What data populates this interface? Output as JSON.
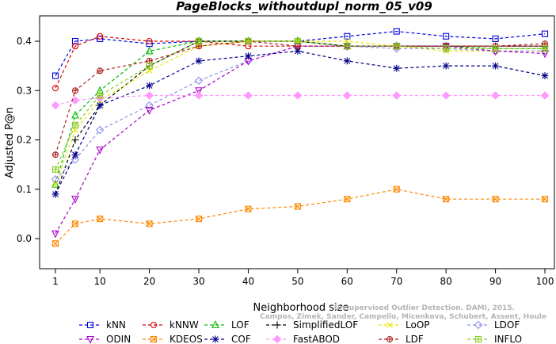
{
  "chart_data": {
    "type": "line",
    "title": "PageBlocks_withoutdupl_norm_05_v09",
    "xlabel": "Neighborhood size",
    "ylabel": "Adjusted P@n",
    "xlim": [
      1,
      100
    ],
    "ylim": [
      -0.05,
      0.44
    ],
    "xticks": [
      1,
      10,
      20,
      30,
      40,
      50,
      60,
      70,
      80,
      90,
      100
    ],
    "yticks": [
      0.0,
      0.1,
      0.2,
      0.3,
      0.4
    ],
    "ytick_labels": [
      "0.0",
      "0.1",
      "0.2",
      "0.3",
      "0.4"
    ],
    "grid": false,
    "legend": "bottom",
    "x": [
      1,
      5,
      10,
      20,
      30,
      40,
      50,
      60,
      70,
      80,
      90,
      100
    ],
    "series": [
      {
        "name": "kNN",
        "color": "#0000dd",
        "marker": "square",
        "values": [
          0.33,
          0.4,
          0.405,
          0.395,
          0.4,
          0.4,
          0.4,
          0.41,
          0.42,
          0.41,
          0.405,
          0.415
        ]
      },
      {
        "name": "kNNW",
        "color": "#dd0000",
        "marker": "circle",
        "values": [
          0.305,
          0.39,
          0.41,
          0.4,
          0.4,
          0.39,
          0.39,
          0.39,
          0.39,
          0.39,
          0.39,
          0.39
        ]
      },
      {
        "name": "LOF",
        "color": "#00bb00",
        "marker": "triangle-up",
        "values": [
          0.11,
          0.25,
          0.3,
          0.38,
          0.4,
          0.4,
          0.4,
          0.39,
          0.39,
          0.39,
          0.385,
          0.385
        ]
      },
      {
        "name": "SimplifiedLOF",
        "color": "#000000",
        "marker": "plus",
        "values": [
          0.09,
          0.2,
          0.27,
          0.35,
          0.4,
          0.4,
          0.4,
          0.39,
          0.39,
          0.39,
          0.39,
          0.39
        ]
      },
      {
        "name": "LoOP",
        "color": "#e6e600",
        "marker": "x",
        "values": [
          0.11,
          0.22,
          0.28,
          0.34,
          0.39,
          0.4,
          0.4,
          0.4,
          0.39,
          0.38,
          0.38,
          0.38
        ]
      },
      {
        "name": "LDOF",
        "color": "#9090ee",
        "marker": "diamond",
        "values": [
          0.12,
          0.16,
          0.22,
          0.27,
          0.32,
          0.36,
          0.39,
          0.39,
          0.385,
          0.385,
          0.38,
          0.38
        ]
      },
      {
        "name": "ODIN",
        "color": "#aa00cc",
        "marker": "triangle-down",
        "values": [
          0.01,
          0.08,
          0.18,
          0.26,
          0.3,
          0.36,
          0.39,
          0.39,
          0.39,
          0.39,
          0.38,
          0.375
        ]
      },
      {
        "name": "KDEOS",
        "color": "#ff8800",
        "marker": "square-x",
        "values": [
          -0.01,
          0.03,
          0.04,
          0.03,
          0.04,
          0.06,
          0.065,
          0.08,
          0.1,
          0.08,
          0.08,
          0.08
        ]
      },
      {
        "name": "COF",
        "color": "#000088",
        "marker": "asterisk",
        "values": [
          0.09,
          0.17,
          0.27,
          0.31,
          0.36,
          0.37,
          0.38,
          0.36,
          0.345,
          0.35,
          0.35,
          0.33
        ]
      },
      {
        "name": "FastABOD",
        "color": "#ff99ff",
        "marker": "diamond-filled",
        "values": [
          0.27,
          0.28,
          0.285,
          0.29,
          0.29,
          0.29,
          0.29,
          0.29,
          0.29,
          0.29,
          0.29,
          0.29
        ]
      },
      {
        "name": "LDF",
        "color": "#aa2222",
        "marker": "circle-plus",
        "values": [
          0.17,
          0.3,
          0.34,
          0.36,
          0.39,
          0.4,
          0.39,
          0.39,
          0.39,
          0.39,
          0.39,
          0.395
        ]
      },
      {
        "name": "INFLO",
        "color": "#88cc22",
        "marker": "square-plus",
        "values": [
          0.14,
          0.23,
          0.29,
          0.35,
          0.4,
          0.4,
          0.4,
          0.39,
          0.39,
          0.385,
          0.385,
          0.385
        ]
      }
    ],
    "watermark": [
      "Unsupervised Outlier Detection. DAMI, 2015.",
      "Campos, Zimek, Sander, Campello, Micenkova, Schubert, Assent, Houle"
    ]
  }
}
